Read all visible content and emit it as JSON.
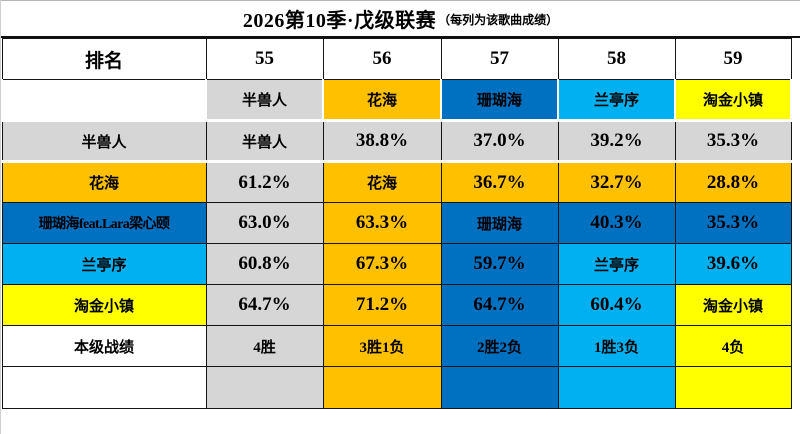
{
  "title": {
    "main": "2026第10季·戊级联赛",
    "sub": "（每列为该歌曲成绩）"
  },
  "colors": {
    "gray": "#D6D6D6",
    "orange": "#FFC000",
    "darkblue": "#0070C0",
    "lightblue": "#00B0F0",
    "yellow": "#FFFF00",
    "white": "#FFFFFF",
    "border": "#141414"
  },
  "table": {
    "header": [
      "排名",
      "55",
      "56",
      "57",
      "58",
      "59"
    ],
    "rows": [
      {
        "key": "song-header",
        "name": "song-header-row",
        "cells": [
          {
            "t": "",
            "bg": "#FFFFFF"
          },
          {
            "t": "半兽人",
            "bg": "#D6D6D6"
          },
          {
            "t": "花海",
            "bg": "#FFC000"
          },
          {
            "t": "珊瑚海",
            "bg": "#0070C0"
          },
          {
            "t": "兰亭序",
            "bg": "#00B0F0"
          },
          {
            "t": "淘金小镇",
            "bg": "#FFFF00"
          }
        ]
      },
      {
        "key": "banshouren",
        "name": "row-banshouren",
        "cells": [
          {
            "t": "半兽人",
            "bg": "#D6D6D6"
          },
          {
            "t": "半兽人",
            "bg": "#D6D6D6"
          },
          {
            "t": "38.8%",
            "bg": "#D6D6D6"
          },
          {
            "t": "37.0%",
            "bg": "#D6D6D6"
          },
          {
            "t": "39.2%",
            "bg": "#D6D6D6"
          },
          {
            "t": "35.3%",
            "bg": "#D6D6D6"
          }
        ]
      },
      {
        "key": "huahai",
        "name": "row-huahai",
        "cells": [
          {
            "t": "花海",
            "bg": "#FFC000"
          },
          {
            "t": "61.2%",
            "bg": "#D6D6D6"
          },
          {
            "t": "花海",
            "bg": "#FFC000"
          },
          {
            "t": "36.7%",
            "bg": "#FFC000"
          },
          {
            "t": "32.7%",
            "bg": "#FFC000"
          },
          {
            "t": "28.8%",
            "bg": "#FFC000"
          }
        ]
      },
      {
        "key": "shanhuhai",
        "name": "row-shanhuhai",
        "cells": [
          {
            "t": "珊瑚海feat.Lara梁心颐",
            "bg": "#0070C0"
          },
          {
            "t": "63.0%",
            "bg": "#D6D6D6"
          },
          {
            "t": "63.3%",
            "bg": "#FFC000"
          },
          {
            "t": "珊瑚海",
            "bg": "#0070C0"
          },
          {
            "t": "40.3%",
            "bg": "#0070C0"
          },
          {
            "t": "35.3%",
            "bg": "#0070C0"
          }
        ]
      },
      {
        "key": "lantingxu",
        "name": "row-lantingxu",
        "cells": [
          {
            "t": "兰亭序",
            "bg": "#00B0F0"
          },
          {
            "t": "60.8%",
            "bg": "#D6D6D6"
          },
          {
            "t": "67.3%",
            "bg": "#FFC000"
          },
          {
            "t": "59.7%",
            "bg": "#0070C0"
          },
          {
            "t": "兰亭序",
            "bg": "#00B0F0"
          },
          {
            "t": "39.6%",
            "bg": "#00B0F0"
          }
        ]
      },
      {
        "key": "taojinzhen",
        "name": "row-taojinxiaozhen",
        "cells": [
          {
            "t": "淘金小镇",
            "bg": "#FFFF00"
          },
          {
            "t": "64.7%",
            "bg": "#D6D6D6"
          },
          {
            "t": "71.2%",
            "bg": "#FFC000"
          },
          {
            "t": "64.7%",
            "bg": "#0070C0"
          },
          {
            "t": "60.4%",
            "bg": "#00B0F0"
          },
          {
            "t": "淘金小镇",
            "bg": "#FFFF00"
          }
        ]
      },
      {
        "key": "record",
        "name": "row-record",
        "cells": [
          {
            "t": "本级战绩",
            "bg": "#FFFFFF"
          },
          {
            "t": "4胜",
            "bg": "#D6D6D6"
          },
          {
            "t": "3胜1负",
            "bg": "#FFC000"
          },
          {
            "t": "2胜2负",
            "bg": "#0070C0"
          },
          {
            "t": "1胜3负",
            "bg": "#00B0F0"
          },
          {
            "t": "4负",
            "bg": "#FFFF00"
          }
        ]
      },
      {
        "key": "colorbar",
        "name": "row-colorbar",
        "cells": [
          {
            "t": "",
            "bg": "#FFFFFF"
          },
          {
            "t": "",
            "bg": "#D6D6D6"
          },
          {
            "t": "",
            "bg": "#FFC000"
          },
          {
            "t": "",
            "bg": "#0070C0"
          },
          {
            "t": "",
            "bg": "#00B0F0"
          },
          {
            "t": "",
            "bg": "#FFFF00"
          }
        ]
      }
    ]
  },
  "chart_data": {
    "type": "table",
    "title": "2026第10季·戊级联赛（每列为该歌曲成绩）",
    "columns": [
      "排名",
      "55",
      "56",
      "57",
      "58",
      "59"
    ],
    "rows": [
      [
        "",
        "半兽人",
        "花海",
        "珊瑚海",
        "兰亭序",
        "淘金小镇"
      ],
      [
        "半兽人",
        "半兽人",
        "38.8%",
        "37.0%",
        "39.2%",
        "35.3%"
      ],
      [
        "花海",
        "61.2%",
        "花海",
        "36.7%",
        "32.7%",
        "28.8%"
      ],
      [
        "珊瑚海feat.Lara梁心颐",
        "63.0%",
        "63.3%",
        "珊瑚海",
        "40.3%",
        "35.3%"
      ],
      [
        "兰亭序",
        "60.8%",
        "67.3%",
        "59.7%",
        "兰亭序",
        "39.6%"
      ],
      [
        "淘金小镇",
        "64.7%",
        "71.2%",
        "64.7%",
        "60.4%",
        "淘金小镇"
      ],
      [
        "本级战绩",
        "4胜",
        "3胜1负",
        "2胜2负",
        "1胜3负",
        "4负"
      ]
    ],
    "song_colors": {
      "半兽人": "#D6D6D6",
      "花海": "#FFC000",
      "珊瑚海": "#0070C0",
      "兰亭序": "#00B0F0",
      "淘金小镇": "#FFFF00"
    },
    "layout_hint": "cell background = color of the losing song in each head-to-head matchup; grid on"
  }
}
